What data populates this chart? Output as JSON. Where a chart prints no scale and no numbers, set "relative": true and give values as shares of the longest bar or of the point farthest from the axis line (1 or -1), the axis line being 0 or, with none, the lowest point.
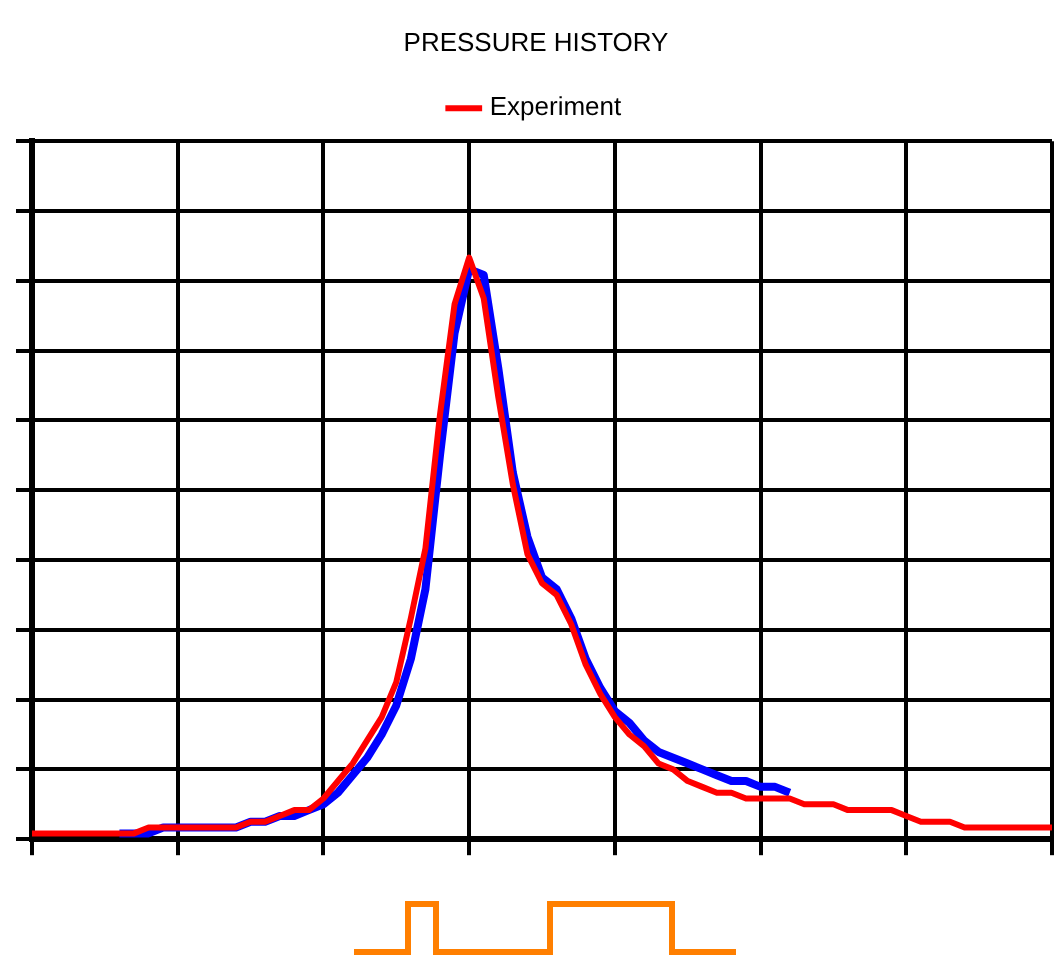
{
  "chart_data": {
    "type": "line",
    "title": "PRESSURE HISTORY",
    "relative": true,
    "grid": true,
    "legend": "top",
    "marker": "none",
    "line_style": "solid",
    "categories": [
      null,
      null,
      null,
      null,
      null,
      null,
      null,
      null,
      null,
      null,
      null,
      null,
      null,
      null,
      null,
      null,
      null,
      null,
      null,
      null,
      null,
      null,
      null,
      null,
      null,
      null,
      null,
      null,
      null,
      null,
      null,
      null,
      null,
      null,
      null,
      null,
      null,
      null,
      null,
      null,
      null,
      null,
      null,
      null,
      null,
      null,
      null,
      null,
      null,
      null,
      null,
      null,
      null,
      null,
      null,
      null,
      null,
      null,
      null,
      null,
      null,
      null,
      null,
      null,
      null,
      null,
      null,
      null,
      null,
      null,
      null
    ],
    "series": [
      {
        "name": "Experiment",
        "color": "#ff0000",
        "values": [
          0.01,
          0.01,
          0.01,
          0.01,
          0.01,
          0.01,
          0.01,
          0.01,
          0.02,
          0.02,
          0.02,
          0.02,
          0.02,
          0.02,
          0.02,
          0.03,
          0.03,
          0.04,
          0.05,
          0.05,
          0.07,
          0.1,
          0.13,
          0.17,
          0.21,
          0.27,
          0.38,
          0.5,
          0.73,
          0.92,
          1.0,
          0.93,
          0.76,
          0.61,
          0.49,
          0.44,
          0.42,
          0.37,
          0.3,
          0.25,
          0.21,
          0.18,
          0.16,
          0.13,
          0.12,
          0.1,
          0.09,
          0.08,
          0.08,
          0.07,
          0.07,
          0.07,
          0.07,
          0.06,
          0.06,
          0.06,
          0.05,
          0.05,
          0.05,
          0.05,
          0.04,
          0.03,
          0.03,
          0.03,
          0.02,
          0.02,
          0.02,
          0.02,
          0.02,
          0.02,
          0.02
        ]
      },
      {
        "color": "#0000ff",
        "values": [
          null,
          null,
          null,
          null,
          null,
          null,
          0.01,
          0.01,
          0.01,
          0.02,
          0.02,
          0.02,
          0.02,
          0.02,
          0.02,
          0.03,
          0.03,
          0.04,
          0.04,
          0.05,
          0.06,
          0.08,
          0.11,
          0.14,
          0.18,
          0.23,
          0.31,
          0.43,
          0.66,
          0.87,
          0.98,
          0.97,
          0.81,
          0.63,
          0.52,
          0.45,
          0.43,
          0.38,
          0.31,
          0.26,
          0.22,
          0.2,
          0.17,
          0.15,
          0.14,
          0.13,
          0.12,
          0.11,
          0.1,
          0.1,
          0.09,
          0.09,
          0.08,
          null,
          null,
          null,
          null,
          null,
          null,
          null,
          null,
          null,
          null,
          null,
          null,
          null,
          null,
          null,
          null,
          null,
          null
        ]
      }
    ]
  }
}
